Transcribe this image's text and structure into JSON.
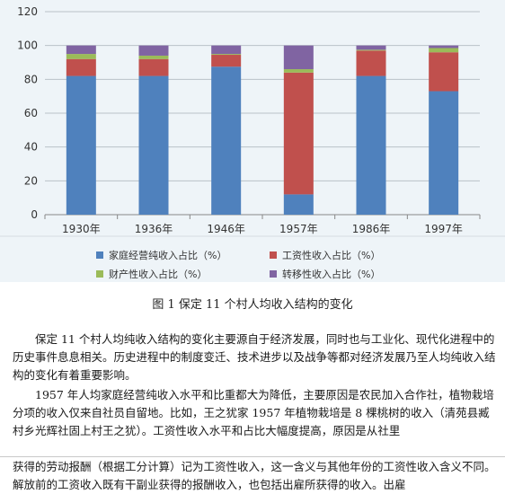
{
  "chart_data": {
    "type": "bar",
    "stacked": true,
    "categories": [
      "1930年",
      "1936年",
      "1946年",
      "1957年",
      "1986年",
      "1997年"
    ],
    "ylim": [
      0,
      120
    ],
    "yticks": [
      0,
      20,
      40,
      60,
      80,
      100,
      120
    ],
    "series": [
      {
        "name": "家庭经营纯收入占比（%）",
        "color": "#4f81bd",
        "values": [
          82,
          82,
          87.5,
          12,
          82,
          73
        ]
      },
      {
        "name": "工资性收入占比（%）",
        "color": "#c0504d",
        "values": [
          10,
          10,
          7,
          72,
          15,
          23
        ]
      },
      {
        "name": "财产性收入占比（%）",
        "color": "#9bbb59",
        "values": [
          3,
          2,
          0.5,
          2,
          0.5,
          2.5
        ]
      },
      {
        "name": "转移性收入占比（%）",
        "color": "#8064a2",
        "values": [
          5,
          6,
          5,
          14,
          2.5,
          1.5
        ]
      }
    ],
    "grid": true,
    "legend": "bottom"
  },
  "caption": "图 1  保定 11 个村人均收入结构的变化",
  "paragraphs": [
    "保定 11 个村人均纯收入结构的变化主要源自于经济发展，同时也与工业化、现代化进程中的历史事件息息相关。历史进程中的制度变迁、技术进步以及战争等都对经济发展乃至人均纯收入结构的变化有着重要影响。",
    "1957 年人均家庭经营纯收入水平和比重都大为降低，主要原因是农民加入合作社，植物栽培分项的收入仅来自社员自留地。比如，王之犹家 1957 年植物栽培是 8 棵桃树的收入（清苑县臧村乡光辉社固上村王之犹）。工资性收入水平和占比大幅度提高，原因是从社里",
    "获得的劳动报酬（根据工分计算）记为工资性收入，这一含义与其他年份的工资性收入含义不同。解放前的工资收入既有干副业获得的报酬收入，也包括出雇所获得的收入。出雇"
  ]
}
